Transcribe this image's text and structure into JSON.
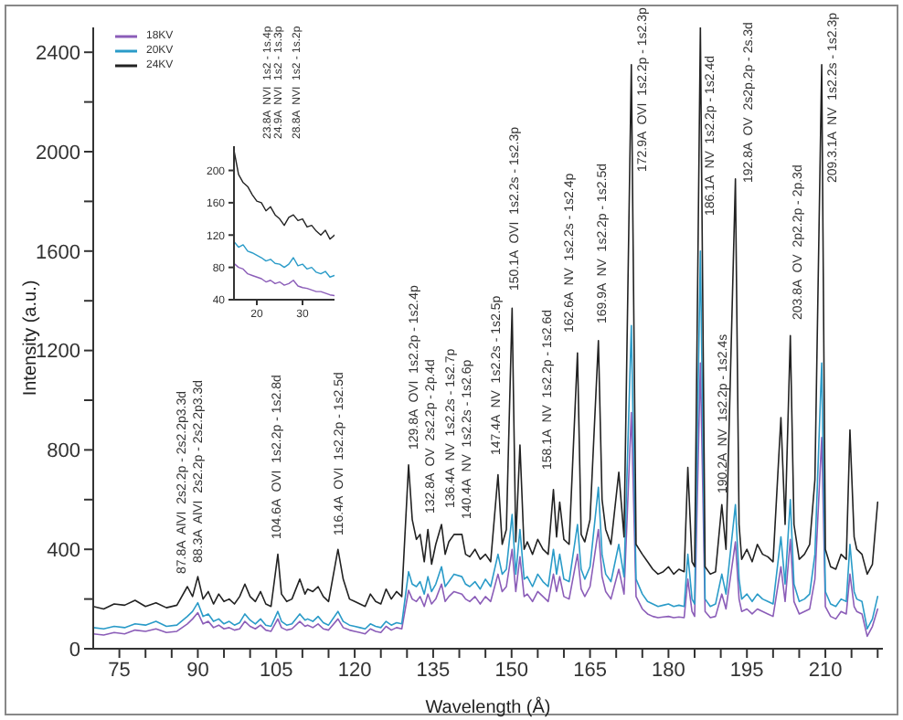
{
  "chart_data": [
    {
      "type": "line",
      "xlabel": "Wavelength (Å)",
      "ylabel": "Intensity (a.u.)",
      "legend": "top left",
      "marker": "none",
      "xlim": [
        70,
        221
      ],
      "ylim": [
        0,
        2500
      ],
      "xticks": [
        75,
        {
          "value": 80,
          "label": null
        },
        {
          "value": 85,
          "label": null
        },
        90,
        {
          "value": 95,
          "label": null
        },
        {
          "value": 100,
          "label": null
        },
        105,
        {
          "value": 110,
          "label": null
        },
        {
          "value": 115,
          "label": null
        },
        120,
        {
          "value": 125,
          "label": null
        },
        {
          "value": 130,
          "label": null
        },
        135,
        {
          "value": 140,
          "label": null
        },
        {
          "value": 145,
          "label": null
        },
        150,
        {
          "value": 155,
          "label": null
        },
        {
          "value": 160,
          "label": null
        },
        165,
        {
          "value": 170,
          "label": null
        },
        {
          "value": 175,
          "label": null
        },
        180,
        {
          "value": 185,
          "label": null
        },
        {
          "value": 190,
          "label": null
        },
        195,
        {
          "value": 200,
          "label": null
        },
        {
          "value": 205,
          "label": null
        },
        210,
        {
          "value": 215,
          "label": null
        },
        {
          "value": 220,
          "label": null
        }
      ],
      "yticks": [
        0,
        {
          "value": 200,
          "label": null
        },
        400,
        {
          "value": 600,
          "label": null
        },
        800,
        {
          "value": 1000,
          "label": null
        },
        1200,
        {
          "value": 1400,
          "label": null
        },
        1600,
        {
          "value": 1800,
          "label": null
        },
        2000,
        {
          "value": 2200,
          "label": null
        },
        2400
      ],
      "x": [
        70,
        72,
        74,
        76,
        78,
        80,
        82,
        84,
        86,
        88,
        89,
        90,
        91,
        92,
        93,
        94,
        95,
        96,
        97,
        98,
        99,
        100,
        101,
        102,
        103,
        104,
        105.3,
        106,
        107,
        108,
        109.5,
        110.5,
        111,
        112,
        113,
        114,
        115,
        116.8,
        117.8,
        119,
        120,
        121,
        122,
        123,
        124,
        125,
        126,
        127,
        128,
        129,
        130.3,
        131,
        131.8,
        132.5,
        133.3,
        134,
        134.7,
        135.5,
        136.6,
        137.3,
        138,
        139,
        140.5,
        141.2,
        142,
        143,
        144,
        145,
        146,
        147.4,
        148.2,
        149,
        150.1,
        150.8,
        151.6,
        152.4,
        153,
        154,
        155,
        156,
        157,
        158,
        158.6,
        159.2,
        160,
        161,
        162.6,
        163.3,
        164,
        165,
        166.6,
        167.3,
        168,
        169,
        170.5,
        171.5,
        172.9,
        173.8,
        175,
        176,
        177,
        178,
        179,
        180,
        181,
        182,
        183,
        183.7,
        184.5,
        185,
        186.1,
        187,
        188,
        189,
        190.2,
        191,
        192.8,
        193.5,
        194,
        195,
        196,
        197,
        198,
        199,
        200,
        201.5,
        202.3,
        203.3,
        204,
        205,
        206,
        207,
        208,
        209.3,
        210,
        211,
        212,
        213,
        214,
        214.7,
        215.5,
        216,
        217,
        218,
        219,
        220
      ],
      "series": [
        {
          "name": "18KV",
          "color": "#8b5db8",
          "values": [
            60,
            55,
            65,
            60,
            75,
            70,
            80,
            65,
            70,
            100,
            120,
            145,
            100,
            110,
            85,
            95,
            80,
            85,
            75,
            80,
            110,
            90,
            80,
            95,
            75,
            70,
            120,
            85,
            75,
            80,
            110,
            90,
            95,
            85,
            100,
            80,
            75,
            120,
            85,
            75,
            70,
            65,
            60,
            80,
            70,
            65,
            90,
            75,
            85,
            80,
            235,
            200,
            190,
            210,
            170,
            220,
            180,
            200,
            260,
            190,
            210,
            230,
            220,
            200,
            190,
            210,
            180,
            210,
            190,
            300,
            230,
            250,
            400,
            230,
            370,
            210,
            220,
            190,
            230,
            210,
            190,
            300,
            230,
            290,
            210,
            200,
            380,
            240,
            210,
            250,
            480,
            290,
            230,
            200,
            320,
            220,
            950,
            210,
            160,
            140,
            130,
            125,
            128,
            130,
            125,
            128,
            125,
            280,
            150,
            130,
            1150,
            150,
            125,
            130,
            220,
            160,
            430,
            200,
            150,
            160,
            140,
            160,
            150,
            140,
            130,
            330,
            190,
            440,
            190,
            140,
            150,
            160,
            280,
            850,
            170,
            130,
            120,
            150,
            140,
            300,
            170,
            150,
            140,
            50,
            90,
            160
          ]
        },
        {
          "name": "20KV",
          "color": "#2a9bc8",
          "values": [
            85,
            80,
            90,
            85,
            100,
            95,
            110,
            90,
            95,
            130,
            150,
            185,
            130,
            140,
            110,
            120,
            100,
            110,
            95,
            105,
            140,
            115,
            100,
            120,
            95,
            90,
            150,
            110,
            95,
            100,
            140,
            115,
            120,
            110,
            130,
            105,
            95,
            150,
            110,
            95,
            90,
            85,
            80,
            100,
            90,
            85,
            110,
            95,
            105,
            100,
            310,
            260,
            250,
            270,
            220,
            290,
            230,
            260,
            330,
            250,
            270,
            300,
            290,
            260,
            250,
            270,
            240,
            280,
            250,
            380,
            300,
            320,
            540,
            300,
            480,
            280,
            290,
            250,
            300,
            270,
            250,
            400,
            300,
            380,
            280,
            270,
            500,
            320,
            280,
            330,
            650,
            380,
            300,
            270,
            420,
            290,
            1300,
            280,
            220,
            190,
            180,
            170,
            175,
            180,
            170,
            175,
            170,
            380,
            200,
            180,
            1600,
            200,
            170,
            180,
            300,
            220,
            580,
            280,
            200,
            220,
            190,
            220,
            200,
            190,
            180,
            450,
            260,
            600,
            260,
            190,
            200,
            220,
            380,
            1150,
            230,
            180,
            170,
            200,
            190,
            420,
            230,
            200,
            190,
            80,
            120,
            210
          ]
        },
        {
          "name": "24KV",
          "color": "#222222",
          "values": [
            170,
            160,
            180,
            175,
            195,
            170,
            185,
            165,
            175,
            250,
            210,
            290,
            200,
            230,
            180,
            220,
            190,
            200,
            180,
            210,
            260,
            210,
            190,
            230,
            180,
            170,
            380,
            220,
            190,
            200,
            280,
            220,
            240,
            230,
            250,
            210,
            190,
            400,
            280,
            200,
            190,
            180,
            170,
            220,
            190,
            180,
            240,
            200,
            230,
            210,
            740,
            520,
            440,
            460,
            350,
            480,
            340,
            420,
            500,
            380,
            430,
            460,
            460,
            380,
            370,
            400,
            360,
            380,
            350,
            700,
            420,
            480,
            1370,
            430,
            820,
            400,
            430,
            380,
            440,
            400,
            380,
            640,
            450,
            590,
            440,
            420,
            1190,
            460,
            430,
            520,
            1240,
            600,
            480,
            420,
            710,
            450,
            2350,
            420,
            380,
            350,
            320,
            300,
            310,
            330,
            300,
            320,
            310,
            730,
            350,
            330,
            2500,
            330,
            300,
            310,
            580,
            400,
            1890,
            500,
            360,
            400,
            350,
            420,
            380,
            370,
            350,
            930,
            500,
            1260,
            500,
            360,
            380,
            420,
            680,
            2350,
            400,
            330,
            320,
            380,
            360,
            880,
            450,
            400,
            380,
            300,
            340,
            590
          ]
        }
      ],
      "annotations": [
        "87.8A  AlVI  2s2.2p - 2s2.2p3.3d",
        "88.3A  AlVI  2s2.2p - 2s2.2p3.3d",
        "104.6A  OVI  1s2.2p - 1s2.8d",
        "116.4A  OVI  1s2.2p - 1s2.5d",
        "129.8A  OVI  1s2.2p - 1s2.4p",
        "132.8A  OV  2s2.2p - 2p.4d",
        "136.4A  NV  1s2.2s - 1s2.7p",
        "140.4A  NV  1s2.2s - 1s2.6p",
        "147.4A  NV  1s2.2s - 1s2.5p",
        "150.1A  OVI  1s2.2s - 1s2.3p",
        "158.1A  NV  1s2.2p - 1s2.6d",
        "162.6A  NV  1s2.2s - 1s2.4p",
        "169.9A  NV  1s2.2p - 1s2.5d",
        "172.9A  OVI  1s2.2p - 1s2.3p",
        "186.1A  NV  1s2.2p - 1s2.4d",
        "190.2A  NV  1s2.2p - 1s2.4s",
        "192.8A  OV  2s2p.2p - 2s.3d",
        "203.8A  OV  2p2.2p - 2p.3d",
        "209.3.1A  NV  1s2.2s - 1s2.3p"
      ]
    },
    {
      "type": "line",
      "marker": "none",
      "xlim": [
        15,
        37
      ],
      "ylim": [
        40,
        230
      ],
      "xticks": [
        20,
        30
      ],
      "yticks": [
        40,
        80,
        120,
        160,
        200
      ],
      "x": [
        15,
        16,
        17,
        18,
        19,
        20,
        21,
        22,
        23,
        24,
        25,
        26,
        27,
        28,
        29,
        30,
        31,
        32,
        33,
        34,
        35,
        36,
        37
      ],
      "series": [
        {
          "color": "#8b5db8",
          "values": [
            85,
            80,
            78,
            72,
            70,
            68,
            66,
            62,
            64,
            60,
            62,
            58,
            60,
            64,
            57,
            55,
            54,
            52,
            50,
            50,
            48,
            46,
            45
          ]
        },
        {
          "color": "#2a9bc8",
          "values": [
            112,
            105,
            108,
            100,
            98,
            95,
            92,
            88,
            90,
            85,
            84,
            80,
            84,
            92,
            82,
            84,
            78,
            80,
            74,
            72,
            75,
            68,
            70
          ]
        },
        {
          "color": "#222222",
          "values": [
            225,
            195,
            185,
            180,
            170,
            162,
            160,
            150,
            155,
            145,
            140,
            132,
            142,
            145,
            138,
            140,
            130,
            132,
            125,
            120,
            126,
            115,
            120
          ]
        }
      ],
      "annotations": [
        "23.8A  NVI  1s2 - 1s.4p",
        "24.9A  NVI  1s2 - 1s.3p",
        "28.8A  NVI  1s2 - 1s.2p"
      ]
    }
  ]
}
